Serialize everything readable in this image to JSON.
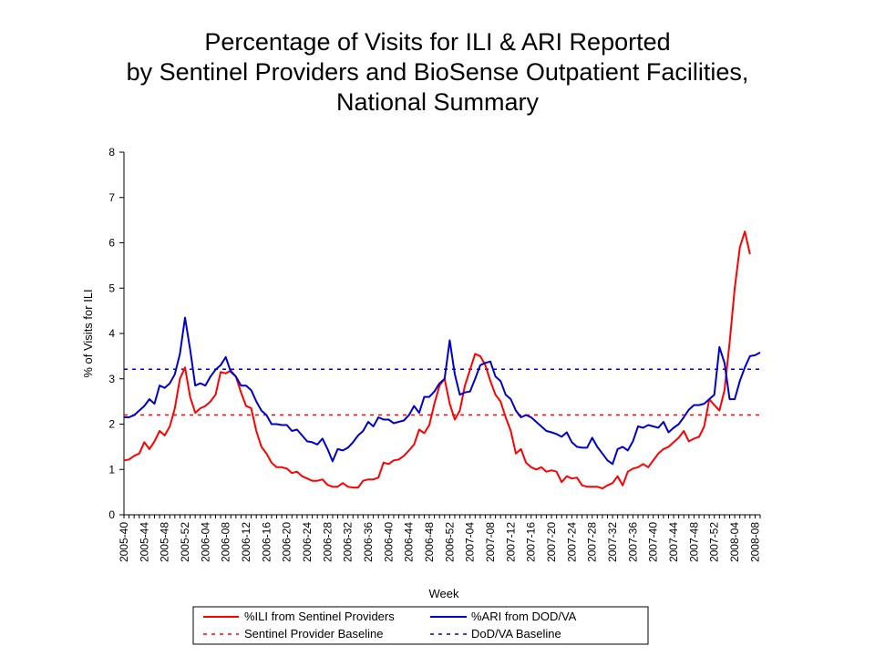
{
  "chart_data": {
    "type": "line",
    "title": [
      "Percentage of Visits for ILI & ARI Reported",
      "by Sentinel Providers and BioSense Outpatient Facilities,",
      "National Summary"
    ],
    "xlabel": "Week",
    "ylabel": "% of Visits for ILI",
    "ylim": [
      0,
      8
    ],
    "yticks": [
      "0",
      "1",
      "2",
      "3",
      "4",
      "5",
      "6",
      "7",
      "8"
    ],
    "xtick_labels": [
      "2005-40",
      "2005-44",
      "2005-48",
      "2005-52",
      "2006-04",
      "2006-08",
      "2006-12",
      "2006-16",
      "2006-20",
      "2006-24",
      "2006-28",
      "2006-32",
      "2006-36",
      "2006-40",
      "2006-44",
      "2006-48",
      "2006-52",
      "2007-04",
      "2007-08",
      "2007-12",
      "2007-16",
      "2007-20",
      "2007-24",
      "2007-28",
      "2007-32",
      "2007-36",
      "2007-40",
      "2007-44",
      "2007-48",
      "2007-52",
      "2008-04",
      "2008-08"
    ],
    "week_count": 126,
    "grid": false,
    "legend_position": "bottom",
    "series": [
      {
        "name": "%ILI from Sentinel Providers",
        "color": "#ff0000",
        "style": "solid",
        "values": [
          1.2,
          1.22,
          1.3,
          1.35,
          1.6,
          1.45,
          1.62,
          1.85,
          1.75,
          1.95,
          2.35,
          3.0,
          3.25,
          2.6,
          2.25,
          2.35,
          2.4,
          2.5,
          2.65,
          3.15,
          3.12,
          3.18,
          3.05,
          2.7,
          2.4,
          2.35,
          1.85,
          1.5,
          1.35,
          1.15,
          1.05,
          1.05,
          1.02,
          0.92,
          0.95,
          0.85,
          0.8,
          0.75,
          0.75,
          0.78,
          0.66,
          0.62,
          0.62,
          0.7,
          0.62,
          0.6,
          0.6,
          0.75,
          0.78,
          0.78,
          0.82,
          1.15,
          1.12,
          1.2,
          1.22,
          1.3,
          1.42,
          1.55,
          1.88,
          1.8,
          1.98,
          2.45,
          2.85,
          3.0,
          2.45,
          2.1,
          2.3,
          2.85,
          3.2,
          3.55,
          3.5,
          3.3,
          2.95,
          2.65,
          2.5,
          2.15,
          1.85,
          1.35,
          1.45,
          1.15,
          1.05,
          1.0,
          1.05,
          0.95,
          0.98,
          0.95,
          0.72,
          0.85,
          0.8,
          0.82,
          0.65,
          0.62,
          0.62,
          0.62,
          0.58,
          0.65,
          0.7,
          0.85,
          0.65,
          0.95,
          1.02,
          1.05,
          1.12,
          1.05,
          1.2,
          1.35,
          1.45,
          1.5,
          1.6,
          1.7,
          1.85,
          1.62,
          1.68,
          1.72,
          1.95,
          2.55,
          2.42,
          2.3,
          2.75,
          3.8,
          5.0,
          5.9,
          6.25,
          5.75
        ]
      },
      {
        "name": "%ARI from DOD/VA",
        "color": "#0000cc",
        "style": "solid",
        "values": [
          2.15,
          2.15,
          2.2,
          2.3,
          2.4,
          2.55,
          2.45,
          2.85,
          2.8,
          2.9,
          3.1,
          3.55,
          4.35,
          3.65,
          2.85,
          2.9,
          2.85,
          3.05,
          3.2,
          3.3,
          3.48,
          3.15,
          3.05,
          2.85,
          2.85,
          2.75,
          2.5,
          2.3,
          2.2,
          2.0,
          2.0,
          1.98,
          1.98,
          1.85,
          1.88,
          1.75,
          1.62,
          1.6,
          1.55,
          1.68,
          1.45,
          1.18,
          1.45,
          1.42,
          1.48,
          1.6,
          1.75,
          1.85,
          2.05,
          1.95,
          2.15,
          2.1,
          2.1,
          2.02,
          2.05,
          2.08,
          2.2,
          2.4,
          2.25,
          2.6,
          2.6,
          2.72,
          2.9,
          3.0,
          3.85,
          3.1,
          2.65,
          2.7,
          2.72,
          3.0,
          3.3,
          3.35,
          3.38,
          3.05,
          2.95,
          2.65,
          2.55,
          2.3,
          2.15,
          2.2,
          2.15,
          2.05,
          1.95,
          1.85,
          1.82,
          1.78,
          1.72,
          1.82,
          1.6,
          1.5,
          1.48,
          1.48,
          1.7,
          1.5,
          1.35,
          1.2,
          1.12,
          1.45,
          1.5,
          1.42,
          1.62,
          1.95,
          1.92,
          1.98,
          1.95,
          1.92,
          2.05,
          1.82,
          1.92,
          2.0,
          2.15,
          2.32,
          2.42,
          2.42,
          2.45,
          2.55,
          2.65,
          3.7,
          3.35,
          2.55,
          2.55,
          2.95,
          3.25,
          3.5,
          3.52,
          3.58
        ]
      },
      {
        "name": "Sentinel Provider Baseline",
        "color": "#ff0000",
        "style": "dashed",
        "constant": 2.2
      },
      {
        "name": "DoD/VA Baseline",
        "color": "#0000cc",
        "style": "dashed",
        "constant": 3.21
      }
    ]
  }
}
